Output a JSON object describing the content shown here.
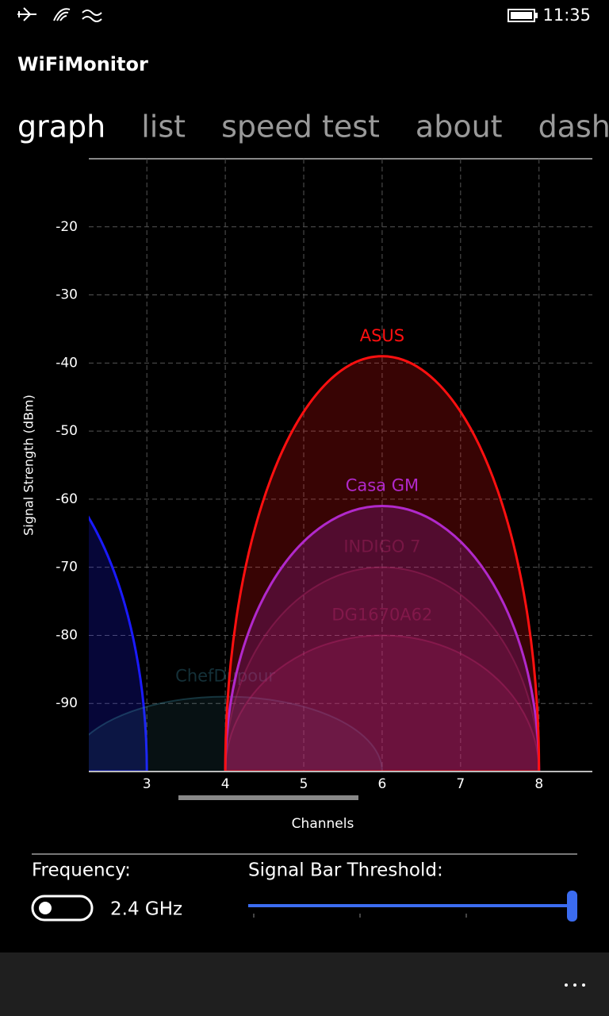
{
  "status_bar": {
    "time": "11:35"
  },
  "app_title": "WiFiMonitor",
  "tabs": [
    "graph",
    "list",
    "speed test",
    "about",
    "dashboard"
  ],
  "chart_data": {
    "type": "channel-arcs",
    "x_label": "Channels",
    "y_label": "Signal Strength (dBm)",
    "xlim": [
      2.26,
      8.68
    ],
    "ylim": [
      -100,
      -10
    ],
    "xticks": [
      3,
      4,
      5,
      6,
      7,
      8
    ],
    "yticks": [
      -90,
      -80,
      -70,
      -60,
      -50,
      -40,
      -30,
      -20
    ],
    "grid": true,
    "series": [
      {
        "color": "#1a1aff",
        "channel": 1,
        "value": -52,
        "faded": false
      },
      {
        "name": "ChefDupour",
        "color": "#3a8aa0",
        "channel": 4,
        "value": -89,
        "faded": true
      },
      {
        "name": "DG1670A62",
        "color": "#c0306a",
        "channel": 6,
        "value": -80,
        "faded": true
      },
      {
        "name": "INDIGO 7",
        "color": "#b03060",
        "channel": 6,
        "value": -70,
        "faded": true
      },
      {
        "name": "Casa GM",
        "color": "#9b30ff",
        "channel": 6,
        "value": -61,
        "faded": false
      },
      {
        "name": "ASUS",
        "color": "#ff1010",
        "channel": 6,
        "value": -39,
        "faded": false
      }
    ]
  },
  "controls": {
    "frequency_label": "Frequency:",
    "frequency_value": "2.4 GHz",
    "threshold_label": "Signal Bar Threshold:"
  }
}
